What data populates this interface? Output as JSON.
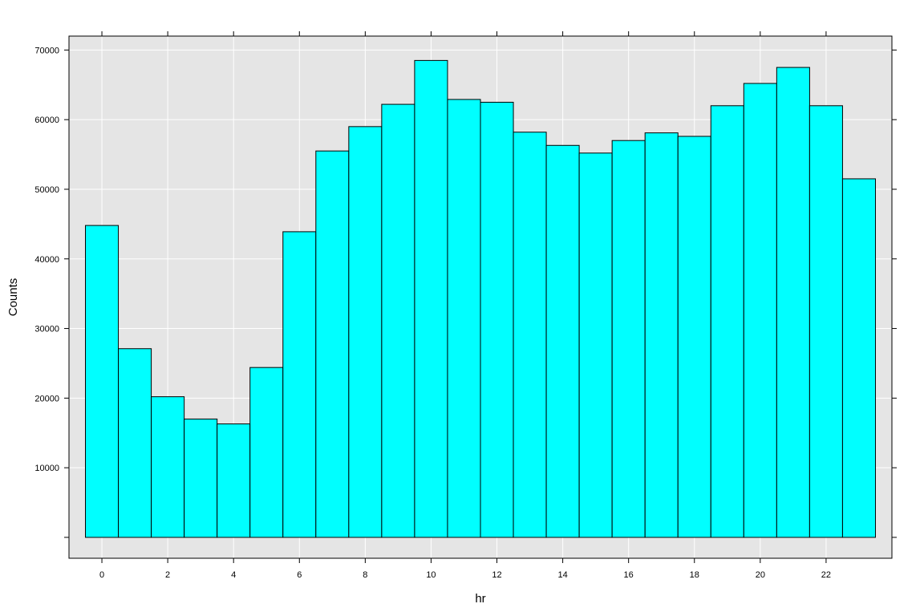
{
  "chart_data": {
    "type": "bar",
    "title": "",
    "xlabel": "hr",
    "ylabel": "Counts",
    "x": [
      0,
      1,
      2,
      3,
      4,
      5,
      6,
      7,
      8,
      9,
      10,
      11,
      12,
      13,
      14,
      15,
      16,
      17,
      18,
      19,
      20,
      21,
      22,
      23
    ],
    "values": [
      44800,
      27100,
      20200,
      17000,
      16300,
      24400,
      43900,
      55500,
      59000,
      62200,
      68500,
      62900,
      62500,
      58200,
      56300,
      55200,
      57000,
      58100,
      57600,
      62000,
      65200,
      67500,
      62000,
      51500
    ],
    "xlim": [
      -1,
      24
    ],
    "ylim": [
      -3000,
      72000
    ],
    "x_ticks": [
      0,
      2,
      4,
      6,
      8,
      10,
      12,
      14,
      16,
      18,
      20,
      22
    ],
    "x_tick_labels": [
      "0",
      "2",
      "4",
      "6",
      "8",
      "10",
      "12",
      "14",
      "16",
      "18",
      "20",
      "22"
    ],
    "y_ticks": [
      10000,
      20000,
      30000,
      40000,
      50000,
      60000,
      70000
    ],
    "y_tick_labels": [
      "10000",
      "20000",
      "30000",
      "40000",
      "50000",
      "60000",
      "70000"
    ],
    "grid": true,
    "legend": "none",
    "colors": {
      "bar_fill": "#00ffff",
      "bar_stroke": "#000000",
      "panel_background": "#e5e5e5",
      "grid": "#ffffff",
      "frame": "#000000"
    }
  }
}
